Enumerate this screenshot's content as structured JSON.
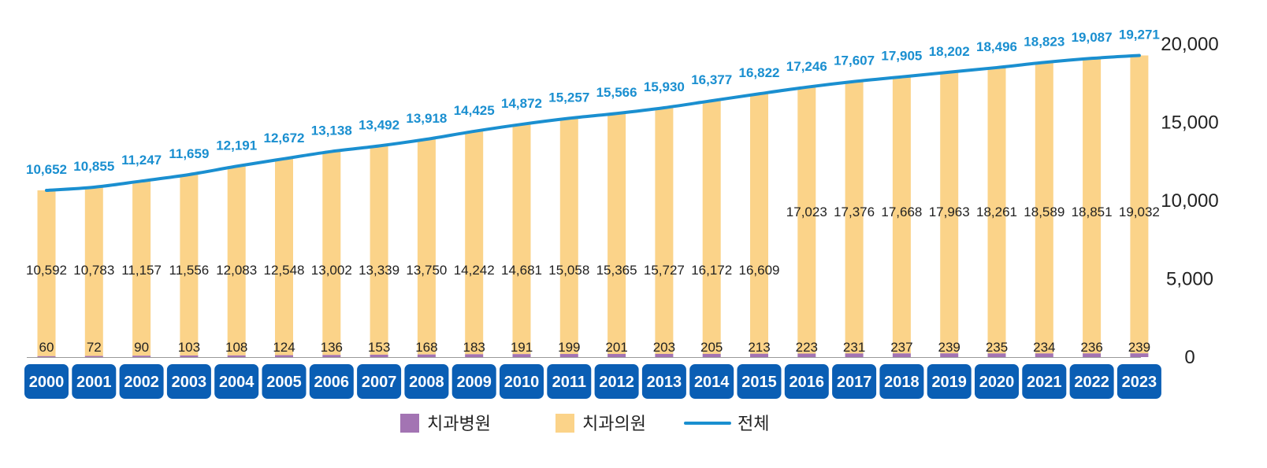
{
  "chart_data": {
    "type": "bar",
    "categories": [
      "2000",
      "2001",
      "2002",
      "2003",
      "2004",
      "2005",
      "2006",
      "2007",
      "2008",
      "2009",
      "2010",
      "2011",
      "2012",
      "2013",
      "2014",
      "2015",
      "2016",
      "2017",
      "2018",
      "2019",
      "2020",
      "2021",
      "2022",
      "2023"
    ],
    "series": [
      {
        "name": "치과병원",
        "kind": "bar",
        "stack": "a",
        "values": [
          60,
          72,
          90,
          103,
          108,
          124,
          136,
          153,
          168,
          183,
          191,
          199,
          201,
          203,
          205,
          213,
          223,
          231,
          237,
          239,
          235,
          234,
          236,
          239
        ],
        "labels": [
          "60",
          "72",
          "90",
          "103",
          "108",
          "124",
          "136",
          "153",
          "168",
          "183",
          "191",
          "199",
          "201",
          "203",
          "205",
          "213",
          "223",
          "231",
          "237",
          "239",
          "235",
          "234",
          "236",
          "239"
        ]
      },
      {
        "name": "치과의원",
        "kind": "bar",
        "stack": "a",
        "values": [
          10592,
          10783,
          11157,
          11556,
          12083,
          12548,
          13002,
          13339,
          13750,
          14242,
          14681,
          15058,
          15365,
          15727,
          16172,
          16609,
          17023,
          17376,
          17668,
          17963,
          18261,
          18589,
          18851,
          19032
        ],
        "labels": [
          "10,592",
          "10,783",
          "11,157",
          "11,556",
          "12,083",
          "12,548",
          "13,002",
          "13,339",
          "13,750",
          "14,242",
          "14,681",
          "15,058",
          "15,365",
          "15,727",
          "16,172",
          "16,609",
          "17,023",
          "17,376",
          "17,668",
          "17,963",
          "18,261",
          "18,589",
          "18,851",
          "19,032"
        ]
      },
      {
        "name": "전체",
        "kind": "line",
        "values": [
          10652,
          10855,
          11247,
          11659,
          12191,
          12672,
          13138,
          13492,
          13918,
          14425,
          14872,
          15257,
          15566,
          15930,
          16377,
          16822,
          17246,
          17607,
          17905,
          18202,
          18496,
          18823,
          19087,
          19271
        ],
        "labels": [
          "10,652",
          "10,855",
          "11,247",
          "11,659",
          "12,191",
          "12,672",
          "13,138",
          "13,492",
          "13,918",
          "14,425",
          "14,872",
          "15,257",
          "15,566",
          "15,930",
          "16,377",
          "16,822",
          "17,246",
          "17,607",
          "17,905",
          "18,202",
          "18,496",
          "18,823",
          "19,087",
          "19,271"
        ]
      }
    ],
    "y_axis": {
      "position": "right",
      "ylim": [
        0,
        20000
      ],
      "ticks": [
        0,
        5000,
        10000,
        15000,
        20000
      ],
      "tick_labels": [
        "0",
        "5,000",
        "10,000",
        "15,000",
        "20,000"
      ]
    },
    "legend": {
      "placement": "bottom-center",
      "items": [
        {
          "label": "치과병원",
          "color": "#a374b3",
          "marker": "square"
        },
        {
          "label": "치과의원",
          "color": "#fbd389",
          "marker": "square"
        },
        {
          "label": "전체",
          "color": "#1a8fd0",
          "marker": "line"
        }
      ]
    },
    "colors": {
      "hospital": "#a374b3",
      "clinic": "#fbd389",
      "total_line": "#1a8fd0",
      "total_label": "#1a8fd0",
      "year_badge": "#0a5eb4"
    },
    "grid": false
  }
}
